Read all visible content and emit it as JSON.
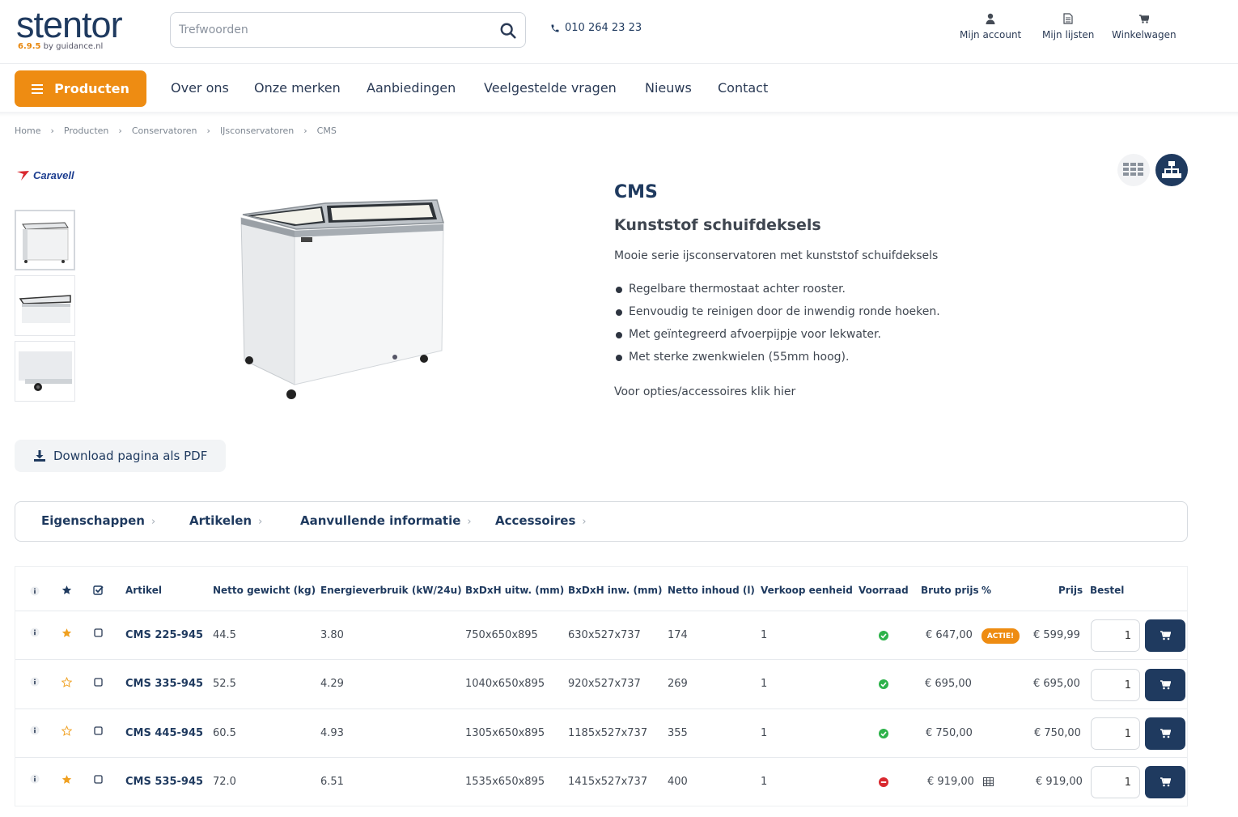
{
  "brand": {
    "logo_text": "stentor",
    "version": "6.9.5",
    "by": " by guidance.nl"
  },
  "search": {
    "placeholder": "Trefwoorden",
    "value": ""
  },
  "header": {
    "phone": "010 264 23 23",
    "account_label": "Mijn account",
    "lists_label": "Mijn lijsten",
    "cart_label": "Winkelwagen"
  },
  "nav": {
    "products_label": "Producten",
    "items": [
      "Over ons",
      "Onze merken",
      "Aanbiedingen",
      "Veelgestelde vragen",
      "Nieuws",
      "Contact"
    ]
  },
  "breadcrumb": [
    "Home",
    "Producten",
    "Conservatoren",
    "IJsconservatoren",
    "CMS"
  ],
  "product": {
    "manufacturer": "Caravell",
    "title": "CMS",
    "subtitle": "Kunststof schuifdeksels",
    "description": "Mooie serie ijsconservatoren met kunststof schuifdeksels",
    "bullets": [
      "Regelbare thermostaat achter rooster.",
      "Eenvoudig te reinigen door de inwendig ronde hoeken.",
      "Met geïntegreerd afvoerpijpje voor lekwater.",
      "Met sterke zwenkwielen (55mm hoog)."
    ],
    "options_link": "Voor opties/accessoires klik hier",
    "pdf_label": "Download pagina als PDF"
  },
  "tabs": [
    "Eigenschappen",
    "Artikelen",
    "Aanvullende informatie",
    "Accessoires"
  ],
  "table": {
    "headers": {
      "artikel": "Artikel",
      "gewicht": "Netto gewicht (kg)",
      "energie": "Energieverbruik (kW/24u)",
      "uitw": "BxDxH uitw. (mm)",
      "inw": "BxDxH inw. (mm)",
      "inhoud": "Netto inhoud (l)",
      "eenheid": "Verkoop eenheid",
      "voorraad": "Voorraad",
      "bruto": "Bruto prijs",
      "pct": "%",
      "prijs": "Prijs",
      "bestel": "Bestel"
    },
    "rows": [
      {
        "artikel": "CMS 225-945",
        "gewicht": "44.5",
        "energie": "3.80",
        "uitw": "750x650x895",
        "inw": "630x527x737",
        "inhoud": "174",
        "eenheid": "1",
        "voorraad": "in-stock",
        "bruto": "€ 647,00",
        "badge": "ACTIE!",
        "prijs": "€ 599,99",
        "qty": "1",
        "favorite": true
      },
      {
        "artikel": "CMS 335-945",
        "gewicht": "52.5",
        "energie": "4.29",
        "uitw": "1040x650x895",
        "inw": "920x527x737",
        "inhoud": "269",
        "eenheid": "1",
        "voorraad": "in-stock",
        "bruto": "€ 695,00",
        "badge": "",
        "prijs": "€ 695,00",
        "qty": "1",
        "favorite": false
      },
      {
        "artikel": "CMS 445-945",
        "gewicht": "60.5",
        "energie": "4.93",
        "uitw": "1305x650x895",
        "inw": "1185x527x737",
        "inhoud": "355",
        "eenheid": "1",
        "voorraad": "in-stock",
        "bruto": "€ 750,00",
        "badge": "",
        "prijs": "€ 750,00",
        "qty": "1",
        "favorite": false
      },
      {
        "artikel": "CMS 535-945",
        "gewicht": "72.0",
        "energie": "6.51",
        "uitw": "1535x650x895",
        "inw": "1415x527x737",
        "inhoud": "400",
        "eenheid": "1",
        "voorraad": "out-of-stock",
        "bruto": "€ 919,00",
        "badge": "",
        "prijs": "€ 919,00",
        "qty": "1",
        "favorite": true
      }
    ]
  },
  "colors": {
    "accent": "#ee8c12",
    "primary": "#1f3a5f",
    "in_stock": "#2db24a",
    "out_of_stock": "#d9282f",
    "star": "#f0a020"
  },
  "icons": [
    "search-icon",
    "phone-icon",
    "user-icon",
    "list-icon",
    "cart-icon",
    "menu-icon",
    "grid-view-icon",
    "tree-view-icon",
    "download-icon",
    "info-icon",
    "star-icon",
    "checkbox-icon",
    "check-circle-icon",
    "minus-circle-icon",
    "tiered-price-icon"
  ]
}
